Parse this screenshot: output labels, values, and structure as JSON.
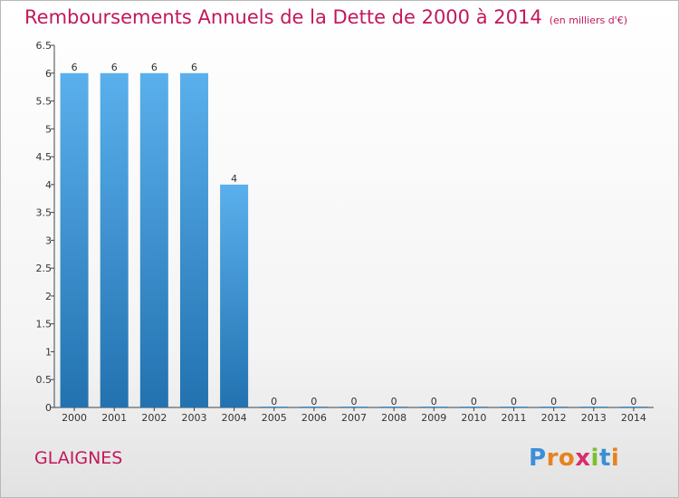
{
  "title": "Remboursements Annuels de la Dette de 2000 à 2014",
  "subtitle": "(en milliers d'€)",
  "commune": "GLAIGNES",
  "logo": {
    "letters": [
      "P",
      "r",
      "o",
      "x",
      "i",
      "t",
      "i"
    ],
    "colors": [
      "#3a8fd8",
      "#e8821e",
      "#e8821e",
      "#d62e6e",
      "#7cbf2e",
      "#3a8fd8",
      "#e8821e"
    ]
  },
  "colors": {
    "bar_top": "#5ab0ec",
    "bar_bottom": "#2272b0",
    "accent": "#c2185b"
  },
  "chart_data": {
    "type": "bar",
    "categories": [
      "2000",
      "2001",
      "2002",
      "2003",
      "2004",
      "2005",
      "2006",
      "2007",
      "2008",
      "2009",
      "2010",
      "2011",
      "2012",
      "2013",
      "2014"
    ],
    "values": [
      6,
      6,
      6,
      6,
      4,
      0,
      0,
      0,
      0,
      0,
      0,
      0,
      0,
      0,
      0
    ],
    "data_labels": [
      "6",
      "6",
      "6",
      "6",
      "4",
      "0",
      "0",
      "0",
      "0",
      "0",
      "0",
      "0",
      "0",
      "0",
      "0"
    ],
    "yticks": [
      "0",
      "0.5",
      "1",
      "1.5",
      "2",
      "2.5",
      "3",
      "3.5",
      "4",
      "4.5",
      "5",
      "5.5",
      "6",
      "6.5"
    ],
    "ytick_values": [
      0,
      0.5,
      1,
      1.5,
      2,
      2.5,
      3,
      3.5,
      4,
      4.5,
      5,
      5.5,
      6,
      6.5
    ],
    "ylim": [
      0,
      6.5
    ],
    "grid": false
  }
}
